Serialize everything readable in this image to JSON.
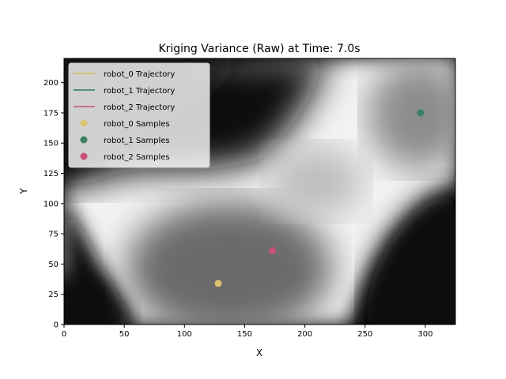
{
  "chart_data": {
    "type": "heatmap",
    "title": "Kriging Variance (Raw) at Time: 7.0s",
    "xlabel": "X",
    "ylabel": "Y",
    "xlim": [
      0,
      325
    ],
    "ylim": [
      0,
      220
    ],
    "x_ticks": [
      0,
      50,
      100,
      150,
      200,
      250,
      300
    ],
    "y_ticks": [
      0,
      25,
      50,
      75,
      100,
      125,
      150,
      175,
      200
    ],
    "colormap": "gray",
    "legend_location": "upper-left",
    "series": [
      {
        "name": "robot_0 Trajectory",
        "kind": "line",
        "color": "#d4c05a",
        "x": [],
        "y": []
      },
      {
        "name": "robot_1 Trajectory",
        "kind": "line",
        "color": "#2e7b5a",
        "x": [],
        "y": []
      },
      {
        "name": "robot_2 Trajectory",
        "kind": "line",
        "color": "#c8507a",
        "x": [],
        "y": []
      },
      {
        "name": "robot_0 Samples",
        "kind": "scatter",
        "color": "#dcc272",
        "x": [
          128
        ],
        "y": [
          34
        ]
      },
      {
        "name": "robot_1 Samples",
        "kind": "scatter",
        "color": "#3a7f62",
        "x": [
          296
        ],
        "y": [
          175
        ]
      },
      {
        "name": "robot_2 Samples",
        "kind": "scatter",
        "color": "#c8507a",
        "x": [
          173
        ],
        "y": [
          61
        ]
      }
    ]
  }
}
